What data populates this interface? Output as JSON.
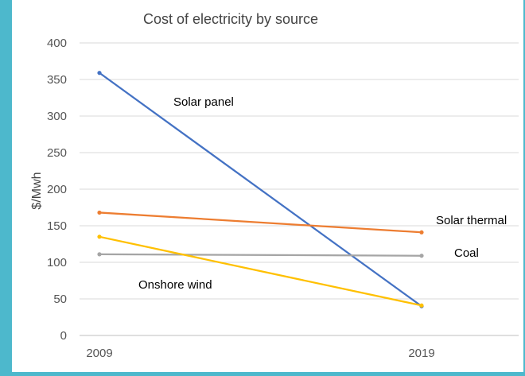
{
  "chart_data": {
    "type": "line",
    "title": "Cost of electricity by source",
    "ylabel": "$/Mwh",
    "xlabel": "",
    "ylim": [
      0,
      400
    ],
    "ytick_step": 50,
    "y_ticks": [
      "0",
      "50",
      "100",
      "150",
      "200",
      "250",
      "300",
      "350",
      "400"
    ],
    "categories": [
      "2009",
      "2019"
    ],
    "grid": true,
    "legend": "none",
    "series": [
      {
        "name": "Solar panel",
        "values": [
          359,
          40
        ],
        "color": "#4472c4"
      },
      {
        "name": "Solar thermal",
        "values": [
          168,
          141
        ],
        "color": "#ed7d31"
      },
      {
        "name": "Coal",
        "values": [
          111,
          109
        ],
        "color": "#a5a5a5"
      },
      {
        "name": "Onshore wind",
        "values": [
          135,
          41
        ],
        "color": "#ffc000"
      }
    ]
  },
  "colors": {
    "frame": "#4db8cc",
    "plot_background": "#ffffff"
  }
}
